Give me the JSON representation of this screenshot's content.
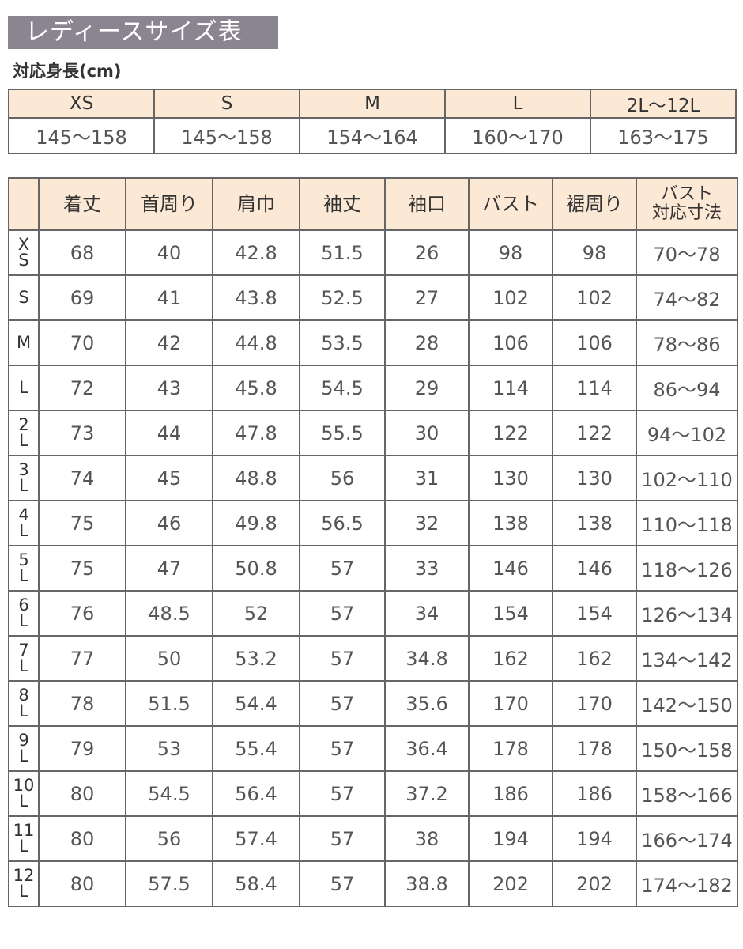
{
  "title": "レディースサイズ表",
  "height_table": {
    "label": "対応身長(cm)",
    "sizes": [
      "XS",
      "S",
      "M",
      "L",
      "2L〜12L"
    ],
    "heights": [
      "145〜158",
      "145〜158",
      "154〜164",
      "160〜170",
      "163〜175"
    ]
  },
  "size_table": {
    "headers": [
      "",
      "着丈",
      "首周り",
      "肩巾",
      "袖丈",
      "袖口",
      "バスト",
      "裾周り",
      "バスト\n対応寸法"
    ],
    "rows": [
      {
        "size": "X\nS",
        "values": [
          "68",
          "40",
          "42.8",
          "51.5",
          "26",
          "98",
          "98",
          "70〜78"
        ]
      },
      {
        "size": "S",
        "values": [
          "69",
          "41",
          "43.8",
          "52.5",
          "27",
          "102",
          "102",
          "74〜82"
        ]
      },
      {
        "size": "M",
        "values": [
          "70",
          "42",
          "44.8",
          "53.5",
          "28",
          "106",
          "106",
          "78〜86"
        ]
      },
      {
        "size": "L",
        "values": [
          "72",
          "43",
          "45.8",
          "54.5",
          "29",
          "114",
          "114",
          "86〜94"
        ]
      },
      {
        "size": "2\nL",
        "values": [
          "73",
          "44",
          "47.8",
          "55.5",
          "30",
          "122",
          "122",
          "94〜102"
        ]
      },
      {
        "size": "3\nL",
        "values": [
          "74",
          "45",
          "48.8",
          "56",
          "31",
          "130",
          "130",
          "102〜110"
        ]
      },
      {
        "size": "4\nL",
        "values": [
          "75",
          "46",
          "49.8",
          "56.5",
          "32",
          "138",
          "138",
          "110〜118"
        ]
      },
      {
        "size": "5\nL",
        "values": [
          "75",
          "47",
          "50.8",
          "57",
          "33",
          "146",
          "146",
          "118〜126"
        ]
      },
      {
        "size": "6\nL",
        "values": [
          "76",
          "48.5",
          "52",
          "57",
          "34",
          "154",
          "154",
          "126〜134"
        ]
      },
      {
        "size": "7\nL",
        "values": [
          "77",
          "50",
          "53.2",
          "57",
          "34.8",
          "162",
          "162",
          "134〜142"
        ]
      },
      {
        "size": "8\nL",
        "values": [
          "78",
          "51.5",
          "54.4",
          "57",
          "35.6",
          "170",
          "170",
          "142〜150"
        ]
      },
      {
        "size": "9\nL",
        "values": [
          "79",
          "53",
          "55.4",
          "57",
          "36.4",
          "178",
          "178",
          "150〜158"
        ]
      },
      {
        "size": "10\nL",
        "values": [
          "80",
          "54.5",
          "56.4",
          "57",
          "37.2",
          "186",
          "186",
          "158〜166"
        ]
      },
      {
        "size": "11\nL",
        "values": [
          "80",
          "56",
          "57.4",
          "57",
          "38",
          "194",
          "194",
          "166〜174"
        ]
      },
      {
        "size": "12\nL",
        "values": [
          "80",
          "57.5",
          "58.4",
          "57",
          "38.8",
          "202",
          "202",
          "174〜182"
        ]
      }
    ]
  },
  "colors": {
    "title_bg": "#8a8590",
    "header_bg": "#fbe8d5",
    "border": "#666666"
  }
}
